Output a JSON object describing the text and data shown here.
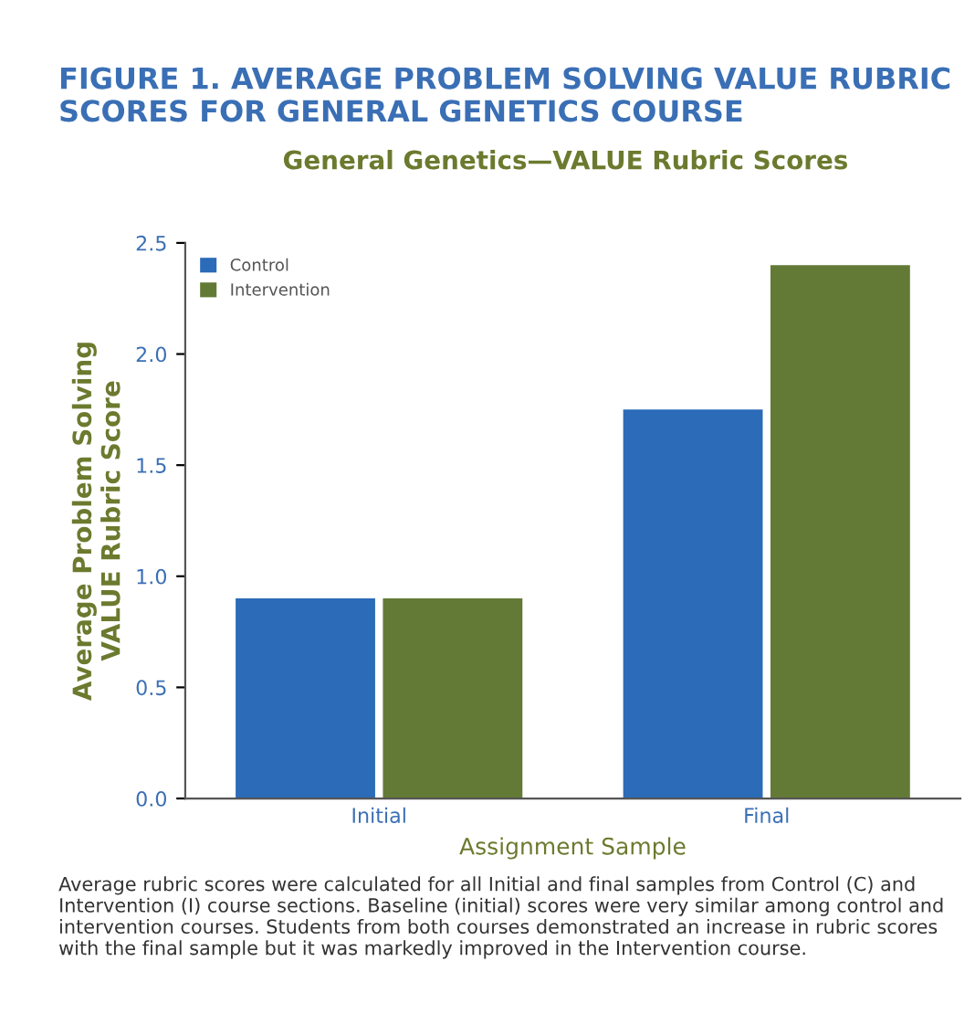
{
  "chart_data": {
    "type": "bar",
    "title": "FIGURE 1. AVERAGE PROBLEM SOLVING VALUE RUBRIC SCORES FOR GENERAL GENETICS COURSE",
    "subtitle": "General Genetics—VALUE Rubric Scores",
    "xlabel": "Assignment Sample",
    "ylabel": "Average Problem Solving\nVALUE Rubric Score",
    "categories": [
      "Initial",
      "Final"
    ],
    "series": [
      {
        "name": "Control",
        "color": "#2b6bb8",
        "values": [
          0.9,
          1.75
        ]
      },
      {
        "name": "Intervention",
        "color": "#637a36",
        "values": [
          0.9,
          2.4
        ]
      }
    ],
    "ylim": [
      0,
      2.5
    ],
    "yticks": [
      {
        "value": 0,
        "label": "0.0"
      },
      0.5,
      {
        "value": 1,
        "label": "1.0"
      },
      1.5,
      {
        "value": 2,
        "label": "2.0"
      },
      2.5
    ],
    "grid": false,
    "legend": "top left",
    "annotations": [
      "Average rubric scores were calculated for all Initial and final samples from Control (C) and Intervention (I) course sections. Baseline (initial) scores were very similar among control and intervention courses. Students from both courses demonstrated an increase in rubric scores with the final sample but it was markedly improved in the Intervention course."
    ]
  }
}
